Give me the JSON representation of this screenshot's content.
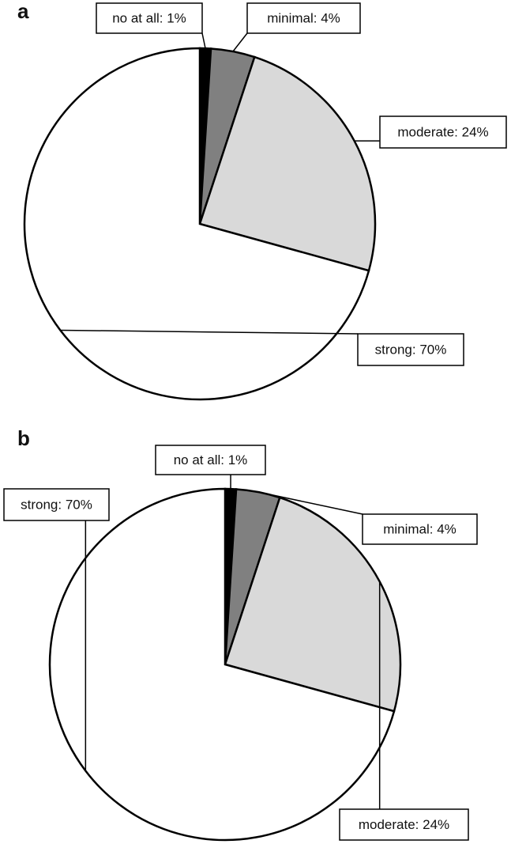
{
  "chart_data": [
    {
      "type": "pie",
      "title": "a",
      "categories": [
        "no at all: 1%",
        "minimal: 4%",
        "moderate: 24%",
        "strong: 70%"
      ],
      "values": [
        1,
        4,
        24,
        70
      ],
      "colors": [
        "#000000",
        "#808080",
        "#d9d9d9",
        "#ffffff"
      ]
    },
    {
      "type": "pie",
      "title": "b",
      "categories": [
        "no at all: 1%",
        "minimal: 4%",
        "moderate: 24%",
        "strong: 70%"
      ],
      "values": [
        1,
        4,
        24,
        70
      ],
      "colors": [
        "#000000",
        "#808080",
        "#d9d9d9",
        "#ffffff"
      ]
    }
  ]
}
